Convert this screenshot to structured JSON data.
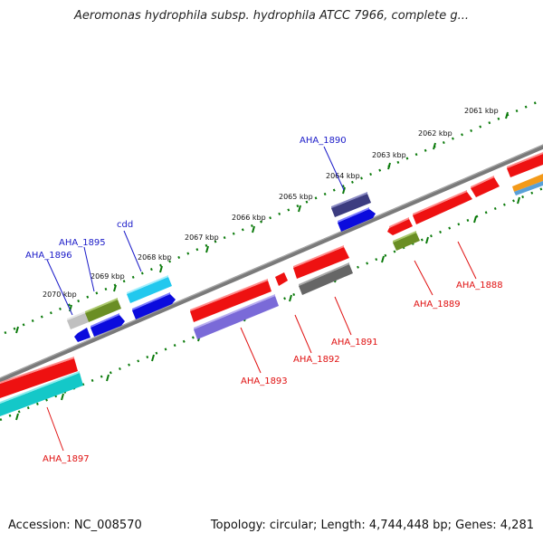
{
  "title": "Aeromonas hydrophila subsp. hydrophila ATCC 7966, complete g...",
  "footer": {
    "accession": "Accession: NC_008570",
    "topology": "Topology: circular; Length: 4,744,448 bp; Genes: 4,281"
  },
  "ticks": [
    "2061 kbp",
    "2062 kbp",
    "2063 kbp",
    "2064 kbp",
    "2065 kbp",
    "2066 kbp",
    "2067 kbp",
    "2068 kbp",
    "2069 kbp",
    "2070 kbp"
  ],
  "genes_top": [
    "AHA_1890",
    "cdd",
    "AHA_1895",
    "AHA_1896"
  ],
  "genes_bottom": [
    "AHA_1888",
    "AHA_1889",
    "AHA_1891",
    "AHA_1892",
    "AHA_1893",
    "AHA_1897"
  ],
  "colors": {
    "red": "#ee1111",
    "blue": "#0b0bdd",
    "navy": "#3c3c80",
    "cyan": "#22c8ee",
    "teal": "#14c8c8",
    "olive": "#6a8e24",
    "gray": "#666666",
    "lightgray": "#c0c0c0",
    "purple": "#7a6ad8",
    "orange": "#f39a1a",
    "tick_green": "#0a7a0a",
    "axis": "#808080"
  }
}
